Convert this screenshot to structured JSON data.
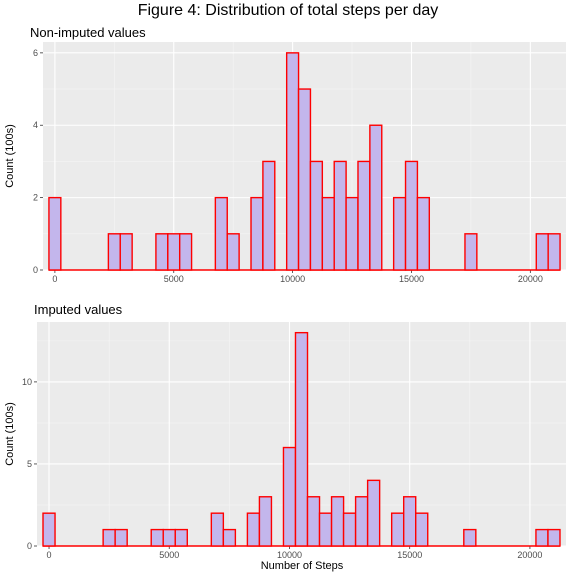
{
  "figure": {
    "title": "Figure 4: Distribution of total steps per day"
  },
  "chart_data": [
    {
      "type": "bar",
      "title": "Non-imputed values",
      "xlabel": "",
      "ylabel": "Count (100s)",
      "bin_width": 500,
      "x": [
        0,
        2500,
        3000,
        4500,
        5000,
        5500,
        7000,
        7500,
        8500,
        9000,
        10000,
        10500,
        11000,
        11500,
        12000,
        12500,
        13000,
        13500,
        14500,
        15000,
        15500,
        17500,
        20500,
        21000
      ],
      "values": [
        2,
        1,
        1,
        1,
        1,
        1,
        2,
        1,
        2,
        3,
        6,
        5,
        3,
        2,
        3,
        2,
        3,
        4,
        2,
        3,
        2,
        1,
        1,
        1
      ],
      "xlim": [
        -500,
        21500
      ],
      "ylim": [
        0,
        6.3
      ],
      "xticks": [
        0,
        5000,
        10000,
        15000,
        20000
      ],
      "yticks": [
        0,
        2,
        4,
        6
      ],
      "fill": "#c3b6ec",
      "outline": "#ff0000",
      "grid": true
    },
    {
      "type": "bar",
      "title": "Imputed values",
      "xlabel": "Number of Steps",
      "ylabel": "Count (100s)",
      "bin_width": 500,
      "x": [
        0,
        2500,
        3000,
        4500,
        5000,
        5500,
        7000,
        7500,
        8500,
        9000,
        10000,
        10500,
        11000,
        11500,
        12000,
        12500,
        13000,
        13500,
        14500,
        15000,
        15500,
        17500,
        20500,
        21000
      ],
      "values": [
        2,
        1,
        1,
        1,
        1,
        1,
        2,
        1,
        2,
        3,
        6,
        13,
        3,
        2,
        3,
        2,
        3,
        4,
        2,
        3,
        2,
        1,
        1,
        1
      ],
      "xlim": [
        -500,
        21500
      ],
      "ylim": [
        0,
        13.65
      ],
      "xticks": [
        0,
        5000,
        10000,
        15000,
        20000
      ],
      "yticks": [
        0,
        5,
        10
      ],
      "fill": "#c3b6ec",
      "outline": "#ff0000",
      "grid": true
    }
  ]
}
